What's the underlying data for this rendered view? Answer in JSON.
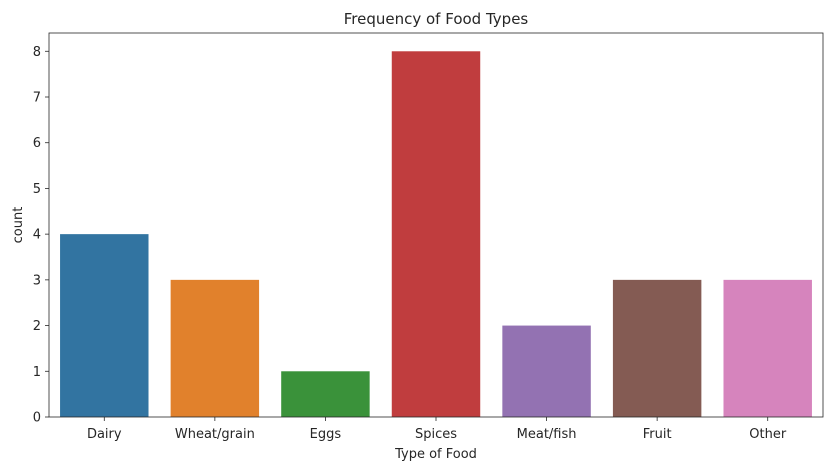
{
  "chart_data": {
    "type": "bar",
    "title": "Frequency of Food Types",
    "xlabel": "Type of Food",
    "ylabel": "count",
    "categories": [
      "Dairy",
      "Wheat/grain",
      "Eggs",
      "Spices",
      "Meat/fish",
      "Fruit",
      "Other"
    ],
    "values": [
      4,
      3,
      1,
      8,
      2,
      3,
      3
    ],
    "colors": [
      "#3274a1",
      "#e1812c",
      "#3a923a",
      "#c03d3e",
      "#9372b2",
      "#845b53",
      "#d684bd"
    ],
    "ylim": [
      0,
      8.4
    ],
    "yticks": [
      0,
      1,
      2,
      3,
      4,
      5,
      6,
      7,
      8
    ],
    "grid": false,
    "legend": "none"
  }
}
